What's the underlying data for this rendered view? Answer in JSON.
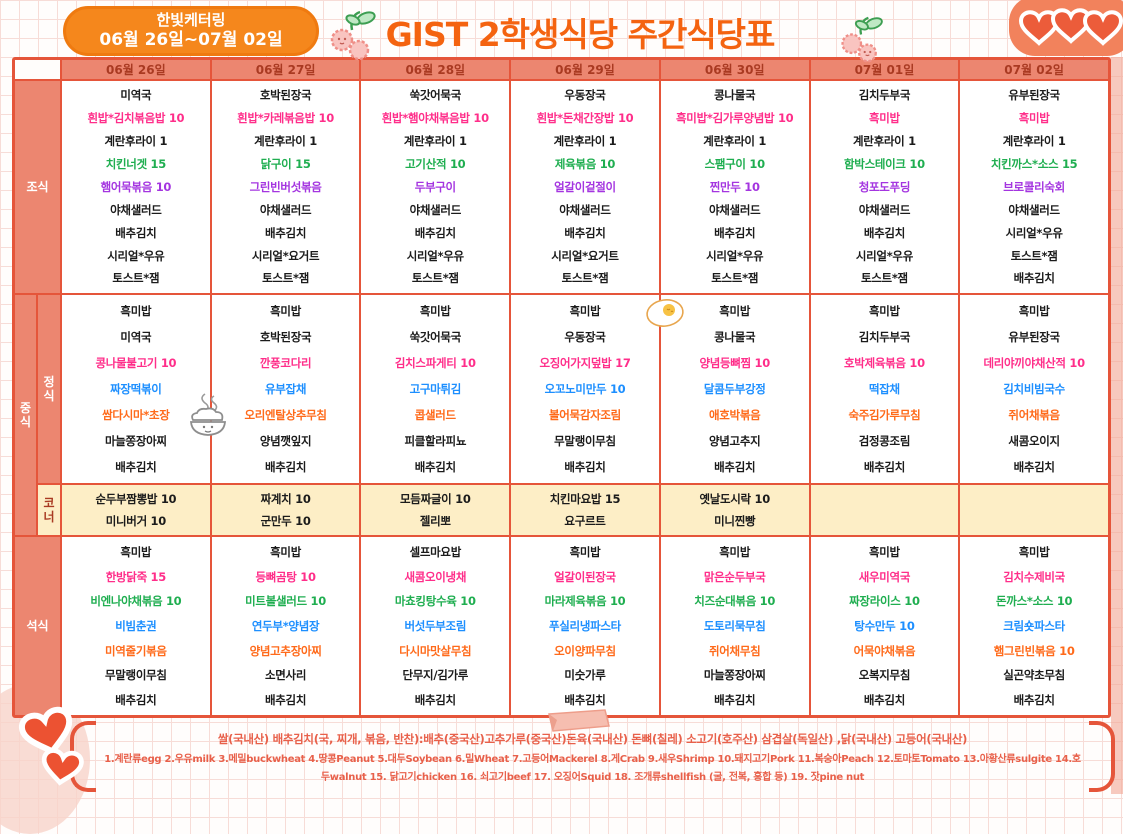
{
  "badge": {
    "line1": "한빛케터링",
    "line2": "06월 26일~07월 02일"
  },
  "title": "GIST 2학생식당 주간식당표",
  "columns": [
    "06월 26일",
    "06월 27일",
    "06월 28일",
    "06월 29일",
    "06월 30일",
    "07월 01일",
    "07월 02일"
  ],
  "row_labels": {
    "breakfast": "조식",
    "lunch": "중식",
    "lunch_regular": "정식",
    "lunch_corner": "코너",
    "dinner": "석식"
  },
  "colors": {
    "black": "#1b1b1b",
    "pink": "#ff2e8a",
    "green": "#1fae50",
    "purple": "#a435e0",
    "blue": "#1d8fff",
    "orange": "#ff6a1a",
    "accent": "#e5553a",
    "salmon": "#ec8670",
    "corner_bg": "#fdeec6",
    "header_text": "#a93a22",
    "title_orange": "#f46310",
    "footer_text": "#e8604a",
    "badge_bg": "#f5871c"
  },
  "color_pattern": {
    "breakfast": [
      "black",
      "pink",
      "black",
      "green",
      "purple",
      "black",
      "black",
      "black",
      "black"
    ],
    "lunch": [
      "black",
      "black",
      "pink",
      "blue",
      "orange",
      "black",
      "black"
    ],
    "corner": [
      "black",
      "black"
    ],
    "dinner": [
      "black",
      "pink",
      "green",
      "blue",
      "orange",
      "black",
      "black"
    ]
  },
  "menu": {
    "breakfast": [
      [
        "미역국",
        "흰밥*김치볶음밥 10",
        "계란후라이 1",
        "치킨너겟 15",
        "햄어묵볶음 10",
        "야채샐러드",
        "배추김치",
        "시리얼*우유",
        "토스트*잼"
      ],
      [
        "호박된장국",
        "흰밥*카레볶음밥 10",
        "계란후라이 1",
        "닭구이 15",
        "그린빈버섯볶음",
        "야채샐러드",
        "배추김치",
        "시리얼*요거트",
        "토스트*잼"
      ],
      [
        "쑥갓어묵국",
        "흰밥*햄야채볶음밥 10",
        "계란후라이 1",
        "고기산적 10",
        "두부구이",
        "야채샐러드",
        "배추김치",
        "시리얼*우유",
        "토스트*잼"
      ],
      [
        "우동장국",
        "흰밥*돈채간장밥 10",
        "계란후라이 1",
        "제육볶음 10",
        "얼갈이겉절이",
        "야채샐러드",
        "배추김치",
        "시리얼*요거트",
        "토스트*잼"
      ],
      [
        "콩나물국",
        "흑미밥*김가루양념밥 10",
        "계란후라이 1",
        "스팸구이 10",
        "찐만두 10",
        "야채샐러드",
        "배추김치",
        "시리얼*우유",
        "토스트*잼"
      ],
      [
        "김치두부국",
        "흑미밥",
        "계란후라이 1",
        "함박스테이크 10",
        "청포도푸딩",
        "야채샐러드",
        "배추김치",
        "시리얼*우유",
        "토스트*잼"
      ],
      [
        "유부된장국",
        "흑미밥",
        "계란후라이 1",
        "치킨까스*소스 15",
        "브로콜리숙회",
        "야채샐러드",
        "시리얼*우유",
        "토스트*잼",
        "배추김치"
      ]
    ],
    "lunch": [
      [
        "흑미밥",
        "미역국",
        "콩나물불고기 10",
        "짜장떡볶이",
        "쌈다시마*초장",
        "마늘쫑장아찌",
        "배추김치"
      ],
      [
        "흑미밥",
        "호박된장국",
        "깐풍코다리",
        "유부잡채",
        "오리엔탈상추무침",
        "양념깻잎지",
        "배추김치"
      ],
      [
        "흑미밥",
        "쑥갓어묵국",
        "김치스파게티 10",
        "고구마튀김",
        "콥샐러드",
        "피클할라피뇨",
        "배추김치"
      ],
      [
        "흑미밥",
        "우동장국",
        "오징어가지덮밥 17",
        "오꼬노미만두 10",
        "볼어묵감자조림",
        "무말랭이무침",
        "배추김치"
      ],
      [
        "흑미밥",
        "콩나물국",
        "양념등뼈찜 10",
        "달콤두부강정",
        "애호박볶음",
        "양념고추지",
        "배추김치"
      ],
      [
        "흑미밥",
        "김치두부국",
        "호박제육볶음 10",
        "떡잡채",
        "숙주김가루무침",
        "검정콩조림",
        "배추김치"
      ],
      [
        "흑미밥",
        "유부된장국",
        "데리야끼야채산적 10",
        "김치비빔국수",
        "쥐어채볶음",
        "새콤오이지",
        "배추김치"
      ]
    ],
    "corner": [
      [
        "순두부짬뽕밥 10",
        "미니버거 10"
      ],
      [
        "짜계치 10",
        "군만두 10"
      ],
      [
        "모듬짜글이 10",
        "젤리뽀"
      ],
      [
        "치킨마요밥 15",
        "요구르트"
      ],
      [
        "옛날도시락 10",
        "미니찐빵"
      ],
      [],
      []
    ],
    "dinner": [
      [
        "흑미밥",
        "한방닭죽 15",
        "비엔나야채볶음 10",
        "비빔춘권",
        "미역줄기볶음",
        "무말랭이무침",
        "배추김치"
      ],
      [
        "흑미밥",
        "등뼈곰탕 10",
        "미트볼샐러드 10",
        "연두부*양념장",
        "양념고추장아찌",
        "소면사리",
        "배추김치"
      ],
      [
        "셀프마요밥",
        "새콤오이냉채",
        "마쵸킹탕수육 10",
        "버섯두부조림",
        "다시마맛살무침",
        "단무지/김가루",
        "배추김치"
      ],
      [
        "흑미밥",
        "얼갈이된장국",
        "마라제육볶음 10",
        "푸실리냉파스타",
        "오이양파무침",
        "미숫가루",
        "배추김치"
      ],
      [
        "흑미밥",
        "맑은순두부국",
        "치즈순대볶음 10",
        "도토리묵무침",
        "쥐어채무침",
        "마늘쫑장아찌",
        "배추김치"
      ],
      [
        "흑미밥",
        "새우미역국",
        "짜장라이스 10",
        "탕수만두 10",
        "어묵야채볶음",
        "오복지무침",
        "배추김치"
      ],
      [
        "흑미밥",
        "김치수제비국",
        "돈까스*소스 10",
        "크림숏파스타",
        "햄그린빈볶음 10",
        "실곤약초무침",
        "배추김치"
      ]
    ]
  },
  "footer": {
    "line1": "쌀(국내산) 배추김치(국, 찌개, 볶음, 반찬):배추(중국산)고추가루(중국산)돈육(국내산) 돈뼈(칠레) 소고기(호주산) 삼겹살(독일산) ,닭(국내산) 고등어(국내산)",
    "line2": "1.계란류egg 2.우유milk 3.메밀buckwheat 4.땅콩Peanut 5.대두Soybean 6.밀Wheat 7.고등어Mackerel 8.게Crab 9.새우Shrimp 10.돼지고기Pork 11.복숭아Peach 12.토마토Tomato 13.아황산류sulgite 14.호",
    "line3": "두walnut 15. 닭고기chicken 16. 쇠고기beef 17. 오징어Squid 18. 조개류shellfish (굴, 전복, 홍합 등) 19. 잣pine nut"
  },
  "icons": {
    "hearts_top_right": "triple-hearts-doodle",
    "hearts_bottom_left": "double-hearts-doodle",
    "cherry_left": "cherry-doodle",
    "cherry_right": "cherry-doodle",
    "fried_egg": "fried-egg-doodle",
    "rice_bowl": "steaming-rice-bowl-doodle",
    "ribbon": "folded-ribbon-doodle"
  }
}
